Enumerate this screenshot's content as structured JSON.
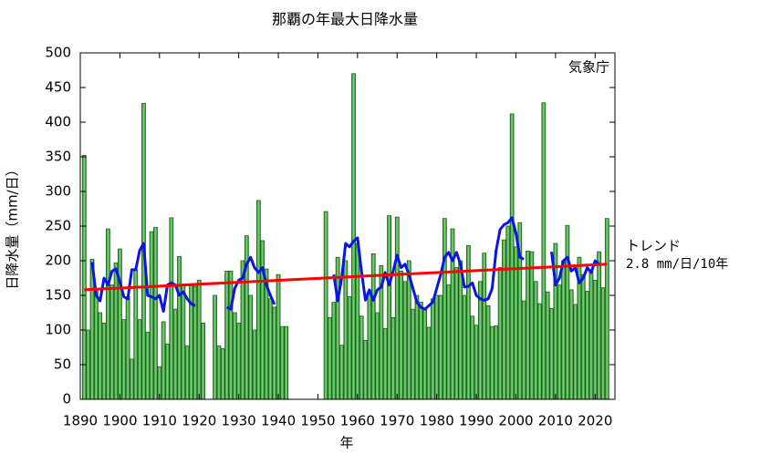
{
  "chart_data": {
    "type": "bar",
    "title": "那覇の年最大日降水量",
    "ylabel": "日降水量（mm/日）",
    "xlabel": "年",
    "source": "気象庁",
    "x": [
      1891,
      1892,
      1893,
      1894,
      1895,
      1896,
      1897,
      1898,
      1899,
      1900,
      1901,
      1902,
      1903,
      1904,
      1905,
      1906,
      1907,
      1908,
      1909,
      1910,
      1911,
      1912,
      1913,
      1914,
      1915,
      1916,
      1917,
      1918,
      1919,
      1920,
      1921,
      1922,
      1923,
      1924,
      1925,
      1926,
      1927,
      1928,
      1929,
      1930,
      1931,
      1932,
      1933,
      1934,
      1935,
      1936,
      1937,
      1938,
      1939,
      1940,
      1941,
      1942,
      1943,
      1944,
      1945,
      1946,
      1947,
      1948,
      1949,
      1950,
      1951,
      1952,
      1953,
      1954,
      1955,
      1956,
      1957,
      1958,
      1959,
      1960,
      1961,
      1962,
      1963,
      1964,
      1965,
      1966,
      1967,
      1968,
      1969,
      1970,
      1971,
      1972,
      1973,
      1974,
      1975,
      1976,
      1977,
      1978,
      1979,
      1980,
      1981,
      1982,
      1983,
      1984,
      1985,
      1986,
      1987,
      1988,
      1989,
      1990,
      1991,
      1992,
      1993,
      1994,
      1995,
      1996,
      1997,
      1998,
      1999,
      2000,
      2001,
      2002,
      2003,
      2004,
      2005,
      2006,
      2007,
      2008,
      2009,
      2010,
      2011,
      2012,
      2013,
      2014,
      2015,
      2016,
      2017,
      2018,
      2019,
      2020,
      2021,
      2022,
      2023
    ],
    "series": [
      {
        "type": "bar",
        "color": "#4cb84c",
        "values": [
          352,
          100,
          202,
          160,
          125,
          110,
          246,
          165,
          197,
          217,
          115,
          148,
          58,
          187,
          115,
          427,
          97,
          242,
          248,
          47,
          112,
          80,
          262,
          130,
          206,
          165,
          77,
          165,
          163,
          172,
          110,
          null,
          null,
          150,
          77,
          73,
          185,
          185,
          125,
          110,
          200,
          236,
          150,
          100,
          287,
          229,
          188,
          145,
          133,
          180,
          105,
          105,
          null,
          null,
          null,
          null,
          null,
          null,
          null,
          null,
          null,
          271,
          118,
          140,
          205,
          78,
          200,
          148,
          470,
          225,
          120,
          85,
          155,
          210,
          125,
          193,
          102,
          265,
          118,
          263,
          185,
          170,
          200,
          130,
          150,
          140,
          130,
          104,
          145,
          150,
          150,
          261,
          165,
          246,
          190,
          200,
          150,
          222,
          120,
          107,
          170,
          211,
          135,
          105,
          106,
          190,
          230,
          250,
          412,
          220,
          255,
          142,
          214,
          213,
          170,
          138,
          428,
          155,
          131,
          225,
          165,
          200,
          251,
          158,
          137,
          205,
          180,
          156,
          187,
          172,
          213,
          161,
          261
        ]
      },
      {
        "type": "line",
        "color": "#0a14e6",
        "values": [
          null,
          null,
          198,
          150,
          142,
          175,
          165,
          185,
          188,
          170,
          148,
          145,
          187,
          187,
          215,
          225,
          150,
          148,
          145,
          150,
          127,
          165,
          168,
          165,
          150,
          155,
          145,
          138,
          135,
          null,
          null,
          null,
          null,
          null,
          null,
          null,
          133,
          130,
          160,
          172,
          175,
          195,
          205,
          190,
          183,
          190,
          165,
          150,
          137,
          null,
          null,
          null,
          null,
          null,
          null,
          null,
          null,
          null,
          null,
          null,
          null,
          null,
          null,
          180,
          142,
          175,
          225,
          220,
          228,
          233,
          185,
          143,
          158,
          143,
          158,
          162,
          183,
          165,
          185,
          208,
          190,
          195,
          180,
          160,
          140,
          133,
          130,
          135,
          140,
          160,
          180,
          205,
          212,
          200,
          212,
          195,
          162,
          163,
          168,
          150,
          145,
          143,
          145,
          160,
          215,
          245,
          252,
          255,
          262,
          240,
          205,
          202,
          null,
          null,
          null,
          null,
          null,
          null,
          213,
          165,
          175,
          200,
          205,
          185,
          190,
          168,
          175,
          190,
          183,
          200,
          195,
          null,
          null
        ]
      }
    ],
    "trend": {
      "label": "トレンド",
      "rate": "2.8 mm/日/10年",
      "color": "#ff0000",
      "x": [
        1891,
        2023
      ],
      "values": [
        158,
        195
      ]
    },
    "xlim": [
      1890,
      2025
    ],
    "xticks": [
      1890,
      1900,
      1910,
      1920,
      1930,
      1940,
      1950,
      1960,
      1970,
      1980,
      1990,
      2000,
      2010,
      2020
    ],
    "ylim": [
      0,
      500
    ],
    "yticks": [
      0,
      50,
      100,
      150,
      200,
      250,
      300,
      350,
      400,
      450,
      500
    ],
    "grid": false
  }
}
